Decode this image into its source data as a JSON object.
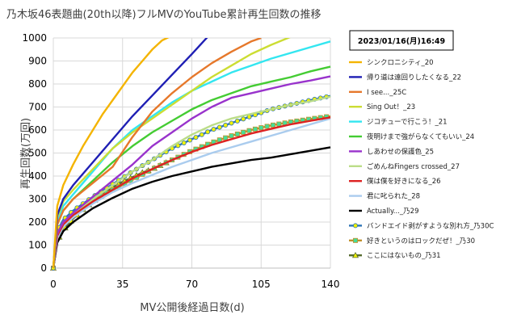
{
  "chart_data": {
    "type": "line",
    "title": "乃木坂46表題曲(20th以降)フルMVのYouTube累計再生回数の推移",
    "xlabel": "MV公開後経過日数(d)",
    "ylabel": "再生回数(万回)",
    "xlim": [
      0,
      140
    ],
    "ylim": [
      0,
      1000
    ],
    "xticks": [
      0,
      35,
      70,
      105,
      140
    ],
    "yticks": [
      0,
      100,
      200,
      300,
      400,
      500,
      600,
      700,
      800,
      900,
      1000
    ],
    "grid": true,
    "legend_position": "right",
    "date_label": "2023/01/16(月)16:49",
    "series": [
      {
        "name": "シンクロニシティ_20",
        "color": "#F4B400",
        "marker": "none",
        "x": [
          0,
          2,
          5,
          10,
          15,
          20,
          25,
          30,
          35,
          40,
          45,
          50,
          55,
          60
        ],
        "y": [
          0,
          270,
          360,
          450,
          530,
          600,
          670,
          730,
          790,
          850,
          900,
          950,
          990,
          1010
        ]
      },
      {
        "name": "帰り道は遠回りしたくなる_22",
        "color": "#1F1FB4",
        "marker": "none",
        "x": [
          0,
          2,
          5,
          10,
          20,
          30,
          40,
          50,
          60,
          70,
          78
        ],
        "y": [
          0,
          230,
          300,
          360,
          460,
          560,
          660,
          750,
          840,
          930,
          1005
        ]
      },
      {
        "name": "I see..._25C",
        "color": "#E6782B",
        "marker": "none",
        "x": [
          0,
          2,
          5,
          10,
          20,
          30,
          40,
          50,
          60,
          70,
          80,
          90,
          100,
          105
        ],
        "y": [
          0,
          190,
          250,
          300,
          370,
          440,
          570,
          680,
          760,
          830,
          890,
          940,
          985,
          1000
        ]
      },
      {
        "name": "Sing Out！_23",
        "color": "#CCDD33",
        "marker": "none",
        "x": [
          0,
          2,
          5,
          10,
          20,
          30,
          40,
          50,
          60,
          70,
          80,
          90,
          100,
          110,
          120
        ],
        "y": [
          0,
          220,
          290,
          340,
          430,
          520,
          590,
          650,
          710,
          770,
          830,
          880,
          930,
          970,
          1005
        ]
      },
      {
        "name": "ジコチューで行こう！_21",
        "color": "#33E6F0",
        "marker": "none",
        "x": [
          0,
          2,
          5,
          10,
          20,
          30,
          40,
          50,
          60,
          70,
          80,
          90,
          100,
          110,
          120,
          130,
          140
        ],
        "y": [
          0,
          200,
          270,
          320,
          420,
          520,
          600,
          660,
          720,
          770,
          810,
          850,
          880,
          910,
          935,
          960,
          985
        ]
      },
      {
        "name": "夜明けまで強がらなくてもいい_24",
        "color": "#44CC33",
        "marker": "none",
        "x": [
          0,
          2,
          5,
          10,
          20,
          30,
          40,
          50,
          60,
          70,
          80,
          90,
          100,
          110,
          120,
          130,
          140
        ],
        "y": [
          0,
          190,
          250,
          300,
          380,
          460,
          530,
          590,
          640,
          690,
          730,
          760,
          790,
          810,
          830,
          855,
          875
        ]
      },
      {
        "name": "しあわせの保護色_25",
        "color": "#9933CC",
        "marker": "none",
        "x": [
          0,
          2,
          5,
          10,
          20,
          30,
          40,
          50,
          60,
          70,
          80,
          90,
          100,
          110,
          120,
          130,
          140
        ],
        "y": [
          0,
          150,
          200,
          240,
          310,
          380,
          450,
          530,
          590,
          650,
          700,
          740,
          760,
          780,
          800,
          815,
          833
        ]
      },
      {
        "name": "ごめんねFingers crossed_27",
        "color": "#BBDD88",
        "marker": "none",
        "x": [
          0,
          2,
          5,
          10,
          20,
          30,
          40,
          50,
          60,
          70,
          80,
          90,
          100,
          110,
          120,
          130,
          140
        ],
        "y": [
          0,
          150,
          200,
          240,
          300,
          360,
          420,
          470,
          530,
          580,
          620,
          650,
          670,
          690,
          710,
          725,
          745
        ]
      },
      {
        "name": "僕は僕を好きになる_26",
        "color": "#DD2222",
        "marker": "none",
        "x": [
          0,
          2,
          5,
          10,
          20,
          30,
          40,
          50,
          60,
          70,
          80,
          90,
          100,
          110,
          120,
          130,
          140
        ],
        "y": [
          0,
          140,
          190,
          230,
          290,
          340,
          390,
          430,
          470,
          505,
          535,
          560,
          585,
          605,
          625,
          640,
          655
        ]
      },
      {
        "name": "君に叱られた_28",
        "color": "#AACCEE",
        "marker": "none",
        "x": [
          0,
          2,
          5,
          10,
          20,
          30,
          40,
          50,
          60,
          70,
          80,
          90,
          100,
          110,
          120,
          130,
          140
        ],
        "y": [
          0,
          130,
          180,
          220,
          280,
          330,
          370,
          405,
          440,
          470,
          500,
          525,
          550,
          575,
          600,
          625,
          650
        ]
      },
      {
        "name": "Actually..._乃29",
        "color": "#000000",
        "marker": "none",
        "x": [
          0,
          2,
          5,
          10,
          20,
          30,
          40,
          50,
          60,
          70,
          80,
          90,
          100,
          110,
          120,
          130,
          140
        ],
        "y": [
          0,
          110,
          160,
          200,
          260,
          305,
          345,
          375,
          400,
          420,
          440,
          455,
          470,
          480,
          495,
          510,
          525
        ]
      },
      {
        "name": "バンドエイド剥がすような別れ方_乃30C",
        "color": "#2E75B6",
        "marker": "circle",
        "marker_fill": "#F2F200",
        "x": [
          0,
          2,
          5,
          10,
          20,
          30,
          40,
          50,
          60,
          70,
          80,
          90,
          100,
          110,
          120,
          130,
          140
        ],
        "y": [
          0,
          160,
          210,
          250,
          310,
          365,
          420,
          470,
          520,
          560,
          600,
          630,
          660,
          690,
          710,
          730,
          748
        ]
      },
      {
        "name": "好きというのはロックだぜ！_乃30",
        "color": "#C0902A",
        "marker": "square",
        "marker_fill": "#44DD99",
        "x": [
          0,
          2,
          5,
          10,
          20,
          30,
          40,
          50,
          60,
          70,
          80,
          90,
          100,
          110,
          120,
          130,
          140
        ],
        "y": [
          0,
          150,
          200,
          240,
          295,
          340,
          385,
          430,
          470,
          510,
          545,
          575,
          600,
          620,
          635,
          648,
          660
        ]
      },
      {
        "name": "ここにはないもの_乃31",
        "color": "#556B2F",
        "marker": "triangle",
        "marker_fill": "#F2F200",
        "x": [
          0,
          2,
          4,
          6,
          8,
          10,
          15,
          20,
          25,
          30,
          35,
          40,
          45,
          50,
          55,
          58
        ],
        "y": [
          0,
          120,
          150,
          175,
          195,
          215,
          255,
          290,
          320,
          350,
          375,
          395,
          415,
          430,
          450,
          462
        ]
      }
    ]
  }
}
